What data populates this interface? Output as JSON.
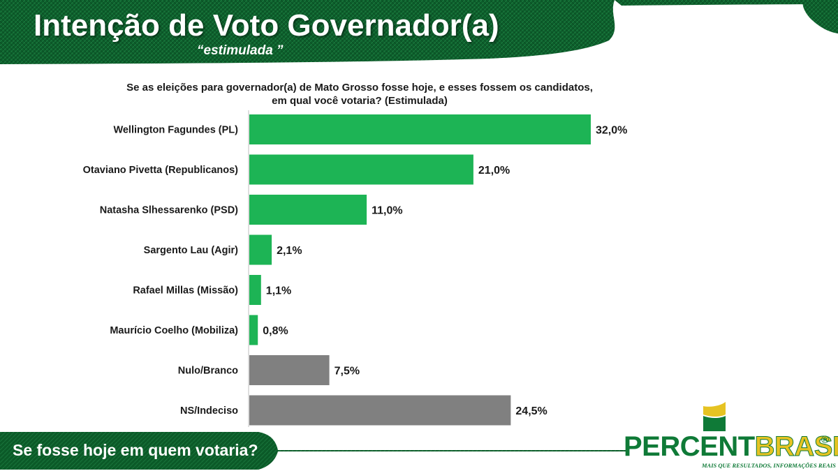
{
  "header": {
    "title": "Intenção de Voto Governador(a)",
    "subtitle": "“estimulada ”"
  },
  "question": {
    "line1": "Se as eleições para governador(a) de Mato Grosso fosse hoje, e esses fossem os candidatos,",
    "line2": "em qual você votaria? (Estimulada)"
  },
  "chart_data": {
    "type": "bar",
    "orientation": "horizontal",
    "categories": [
      "Wellington Fagundes (PL)",
      "Otaviano Pivetta (Republicanos)",
      "Natasha Slhessarenko (PSD)",
      "Sargento Lau (Agir)",
      "Rafael Millas (Missão)",
      "Maurício Coelho (Mobiliza)",
      "Nulo/Branco",
      "NS/Indeciso"
    ],
    "values": [
      32.0,
      21.0,
      11.0,
      2.1,
      1.1,
      0.8,
      7.5,
      24.5
    ],
    "value_labels": [
      "32,0%",
      "21,0%",
      "11,0%",
      "2,1%",
      "1,1%",
      "0,8%",
      "7,5%",
      "24,5%"
    ],
    "bar_colors": [
      "#1db455",
      "#1db455",
      "#1db455",
      "#1db455",
      "#1db455",
      "#1db455",
      "#808080",
      "#808080"
    ],
    "title": "",
    "xlabel": "",
    "ylabel": "",
    "xlim": [
      0,
      32
    ],
    "grid": false,
    "legend": "none"
  },
  "footer": {
    "question": "Se fosse hoje em quem votaria?"
  },
  "logo": {
    "part1": "PERCENT",
    "part2": "BRASIL",
    "registered": "®",
    "tagline": "MAIS QUE RESULTADOS, INFORMAÇÕES REAIS"
  },
  "colors": {
    "brand_green": "#0f7a37",
    "dark_green": "#0b5a28",
    "bar_green": "#1db455",
    "bar_gray": "#808080",
    "brand_yellow": "#e6c322"
  }
}
